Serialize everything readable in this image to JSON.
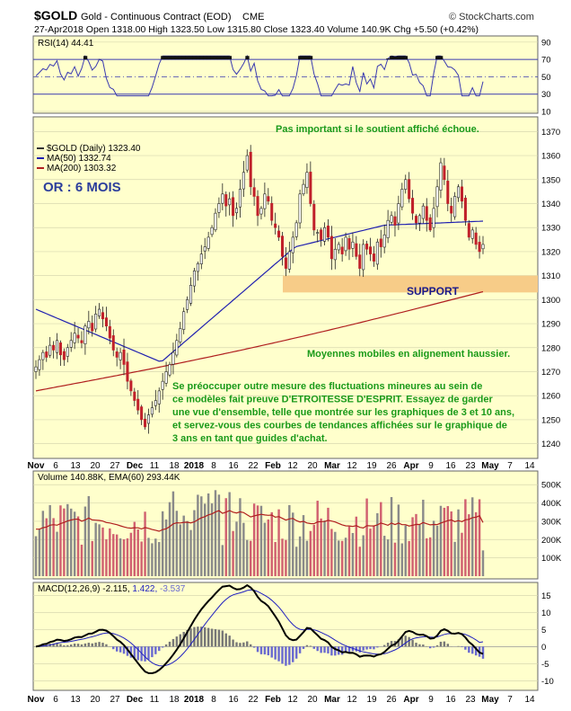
{
  "header": {
    "symbol": "$GOLD",
    "name": "Gold - Continuous Contract (EOD)",
    "exchange": "CME",
    "watermark": "© StockCharts.com",
    "stats": "27-Apr2018  Open 1318.00  High 1323.50  Low 1315.80  Close 1323.40  Volume 140.9K  Chg +5.50 (+0.42%)",
    "stats_up_glyph": "▲"
  },
  "rsi_panel": {
    "label": "RSI(14) 44.41",
    "axis_ticks": [
      "90",
      "70",
      "50",
      "30",
      "10"
    ]
  },
  "price_panel": {
    "legend": [
      {
        "text": "$GOLD (Daily) 1323.40",
        "color": "#333333"
      },
      {
        "text": "MA(50) 1332.74",
        "color": "#1f1fb0"
      },
      {
        "text": "MA(200) 1303.32",
        "color": "#b01f1f"
      }
    ],
    "axis_ticks": [
      "1370",
      "1360",
      "1350",
      "1340",
      "1330",
      "1320",
      "1310",
      "1300",
      "1290",
      "1280",
      "1270",
      "1260",
      "1250",
      "1240"
    ],
    "title_overlay": "OR : 6 MOIS",
    "annotation_top": "Pas important si le soutient affiché échoue.",
    "support_label": "SUPPORT",
    "annotation_ma": "Moyennes mobiles en alignement haussier.",
    "annotation_body": [
      "Se préoccuper outre mesure des fluctuations mineures au sein de",
      "ce modèles fait preuve D'ETROITESSE D'ESPRIT. Essayez de garder",
      "une vue d'ensemble, telle que montrée sur les graphiques de 3 et 10 ans,",
      "et servez-vous des courbes de tendances affichées sur le graphique de",
      "3 ans en tant que guides d'achat."
    ]
  },
  "volume_panel": {
    "label": "Volume 140.88K, EMA(60) 293.44K",
    "axis_ticks": [
      "500K",
      "400K",
      "300K",
      "200K",
      "100K"
    ]
  },
  "macd_panel": {
    "label_prefix": "MACD(12,26,9) -2.115,",
    "label_signal": "1.422,",
    "label_hist": "-3.537",
    "axis_ticks": [
      "15",
      "10",
      "5",
      "0",
      "-5",
      "-10"
    ]
  },
  "x_axis": {
    "labels": [
      {
        "t": "Nov",
        "bold": true
      },
      {
        "t": "6",
        "bold": false
      },
      {
        "t": "13",
        "bold": false
      },
      {
        "t": "20",
        "bold": false
      },
      {
        "t": "27",
        "bold": false
      },
      {
        "t": "Dec",
        "bold": true
      },
      {
        "t": "11",
        "bold": false
      },
      {
        "t": "18",
        "bold": false
      },
      {
        "t": "2018",
        "bold": true
      },
      {
        "t": "8",
        "bold": false
      },
      {
        "t": "16",
        "bold": false
      },
      {
        "t": "22",
        "bold": false
      },
      {
        "t": "Feb",
        "bold": true
      },
      {
        "t": "12",
        "bold": false
      },
      {
        "t": "20",
        "bold": false
      },
      {
        "t": "Mar",
        "bold": true
      },
      {
        "t": "12",
        "bold": false
      },
      {
        "t": "19",
        "bold": false
      },
      {
        "t": "26",
        "bold": false
      },
      {
        "t": "Apr",
        "bold": true
      },
      {
        "t": "9",
        "bold": false
      },
      {
        "t": "16",
        "bold": false
      },
      {
        "t": "23",
        "bold": false
      },
      {
        "t": "May",
        "bold": true
      },
      {
        "t": "7",
        "bold": false
      },
      {
        "t": "14",
        "bold": false
      }
    ]
  },
  "colors": {
    "panel_bg": "#ffffcc",
    "up": "#ffffff",
    "down": "#c0202a",
    "wick": "#222222",
    "ma50": "#1f1fb0",
    "ma200": "#b01f1f",
    "rsi_line": "#3a3ab0",
    "support_zone": "#f7cc88",
    "annotation_green": "#1a9a1a",
    "title_blue": "#2c3e9c",
    "vol_up": "#8a8a8a",
    "vol_down": "#d06070",
    "macd_hist_pos": "#777777",
    "macd_hist_neg": "#6a6ad0"
  },
  "chart_data": {
    "type": "candlestick",
    "title": "$GOLD Gold - Continuous Contract (EOD) CME",
    "date_range": [
      "Nov-2017",
      "27-Apr-2018"
    ],
    "price_ylim": [
      1235,
      1375
    ],
    "rsi_ylim": [
      10,
      95
    ],
    "volume_ylim": [
      0,
      560000
    ],
    "macd_ylim": [
      -12,
      18
    ],
    "support_zone": [
      1303,
      1310
    ],
    "close_path": [
      1272,
      1275,
      1278,
      1276,
      1281,
      1279,
      1283,
      1277,
      1275,
      1280,
      1283,
      1286,
      1284,
      1282,
      1289,
      1291,
      1287,
      1294,
      1296,
      1292,
      1289,
      1284,
      1279,
      1276,
      1278,
      1273,
      1266,
      1262,
      1258,
      1254,
      1250,
      1247,
      1252,
      1255,
      1258,
      1262,
      1266,
      1270,
      1273,
      1278,
      1283,
      1288,
      1295,
      1300,
      1306,
      1312,
      1315,
      1319,
      1322,
      1326,
      1330,
      1336,
      1340,
      1344,
      1339,
      1342,
      1335,
      1338,
      1346,
      1353,
      1360,
      1347,
      1343,
      1335,
      1338,
      1344,
      1341,
      1333,
      1330,
      1326,
      1318,
      1313,
      1320,
      1326,
      1332,
      1344,
      1348,
      1353,
      1340,
      1329,
      1328,
      1325,
      1330,
      1326,
      1317,
      1321,
      1323,
      1319,
      1326,
      1321,
      1324,
      1318,
      1313,
      1323,
      1321,
      1319,
      1316,
      1324,
      1322,
      1327,
      1333,
      1335,
      1331,
      1340,
      1346,
      1350,
      1342,
      1336,
      1332,
      1335,
      1339,
      1333,
      1329,
      1338,
      1347,
      1357,
      1350,
      1340,
      1336,
      1343,
      1347,
      1341,
      1333,
      1326,
      1329,
      1323,
      1320,
      1323
    ],
    "ma50": {
      "start": 1296,
      "end": 1332.74
    },
    "ma200": {
      "start": 1262,
      "end": 1303.32
    },
    "rsi_last": 44.41,
    "volume_ema60_last": 293440,
    "volume_last": 140880,
    "macd": {
      "macd_last": -2.115,
      "signal_last": 1.422,
      "hist_last": -3.537
    }
  }
}
